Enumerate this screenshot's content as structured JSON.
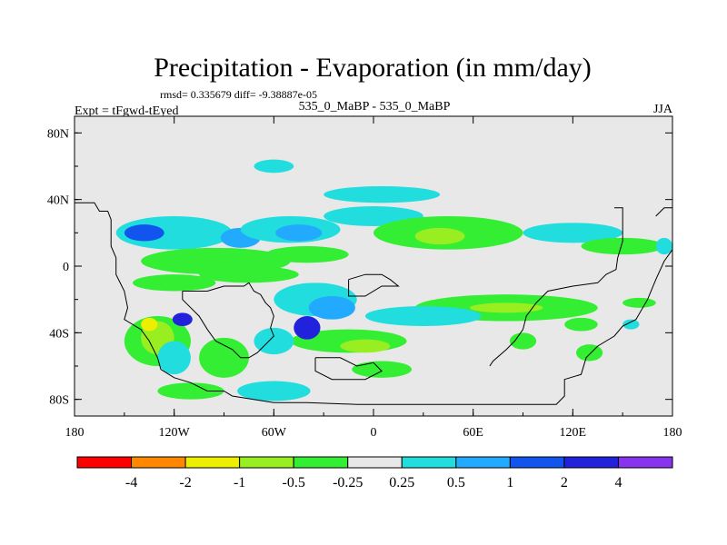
{
  "chart_data": {
    "type": "heatmap",
    "title": "Precipitation - Evaporation (in mm/day)",
    "stats": "rmsd= 0.335679 diff= -9.38887e-05",
    "left_label": "Expt = tFgwd-tEyed",
    "center_label": "535_0_MaBP - 535_0_MaBP",
    "right_label": "JJA",
    "xlim": [
      -180,
      180
    ],
    "ylim": [
      -90,
      90
    ],
    "x_ticks": [
      {
        "value": -180,
        "label": "180"
      },
      {
        "value": -120,
        "label": "120W"
      },
      {
        "value": -60,
        "label": "60W"
      },
      {
        "value": 0,
        "label": "0"
      },
      {
        "value": 60,
        "label": "60E"
      },
      {
        "value": 120,
        "label": "120E"
      },
      {
        "value": 180,
        "label": "180"
      }
    ],
    "y_ticks": [
      {
        "value": 80,
        "label": "80N"
      },
      {
        "value": 40,
        "label": "40N"
      },
      {
        "value": 0,
        "label": "0"
      },
      {
        "value": -40,
        "label": "40S"
      },
      {
        "value": -80,
        "label": "80S"
      }
    ],
    "colorbar": {
      "labels": [
        "-4",
        "-2",
        "-1",
        "-0.5",
        "-0.25",
        "0.25",
        "0.5",
        "1",
        "2",
        "4"
      ],
      "colors": [
        "#ff0000",
        "#ff8800",
        "#eeee00",
        "#99ee22",
        "#33ee33",
        "#e8e8e8",
        "#22dddd",
        "#22aaff",
        "#1155ee",
        "#2222dd",
        "#8833ee"
      ]
    },
    "background_color": "#e8e8e8",
    "coastline": [
      [
        [
          -180,
          38
        ],
        [
          -168,
          38
        ],
        [
          -165,
          33
        ],
        [
          -160,
          33
        ],
        [
          -158,
          28
        ],
        [
          -158,
          12
        ],
        [
          -155,
          5
        ],
        [
          -155,
          -5
        ],
        [
          -150,
          -15
        ],
        [
          -148,
          -25
        ],
        [
          -150,
          -32
        ],
        [
          -140,
          -38
        ],
        [
          -135,
          -45
        ],
        [
          -130,
          -55
        ],
        [
          -128,
          -62
        ],
        [
          -120,
          -67
        ],
        [
          -110,
          -70
        ],
        [
          -100,
          -75
        ],
        [
          -90,
          -75
        ],
        [
          -85,
          -78
        ],
        [
          -60,
          -82
        ],
        [
          -40,
          -82
        ],
        [
          -10,
          -83
        ],
        [
          20,
          -83
        ],
        [
          60,
          -83
        ],
        [
          110,
          -83
        ],
        [
          115,
          -78
        ],
        [
          115,
          -68
        ],
        [
          125,
          -65
        ],
        [
          128,
          -55
        ],
        [
          135,
          -48
        ],
        [
          145,
          -42
        ],
        [
          150,
          -36
        ],
        [
          158,
          -32
        ],
        [
          165,
          -20
        ],
        [
          170,
          -8
        ],
        [
          175,
          3
        ],
        [
          180,
          10
        ]
      ],
      [
        [
          -115,
          -15
        ],
        [
          -100,
          -15
        ],
        [
          -90,
          -12
        ],
        [
          -78,
          -12
        ],
        [
          -75,
          -10
        ],
        [
          -72,
          -15
        ],
        [
          -68,
          -17
        ],
        [
          -65,
          -22
        ],
        [
          -62,
          -25
        ],
        [
          -60,
          -30
        ],
        [
          -62,
          -37
        ],
        [
          -60,
          -42
        ],
        [
          -65,
          -47
        ],
        [
          -70,
          -52
        ],
        [
          -75,
          -55
        ],
        [
          -80,
          -55
        ],
        [
          -85,
          -50
        ],
        [
          -95,
          -45
        ],
        [
          -100,
          -38
        ],
        [
          -105,
          -30
        ],
        [
          -110,
          -25
        ],
        [
          -115,
          -20
        ],
        [
          -115,
          -15
        ]
      ],
      [
        [
          -15,
          -8
        ],
        [
          -5,
          -5
        ],
        [
          5,
          -5
        ],
        [
          10,
          -8
        ],
        [
          15,
          -12
        ],
        [
          5,
          -12
        ],
        [
          -5,
          -18
        ],
        [
          -15,
          -18
        ],
        [
          -15,
          -8
        ]
      ],
      [
        [
          -35,
          -55
        ],
        [
          -20,
          -55
        ],
        [
          -10,
          -60
        ],
        [
          0,
          -58
        ],
        [
          5,
          -63
        ],
        [
          -5,
          -68
        ],
        [
          -25,
          -68
        ],
        [
          -35,
          -63
        ],
        [
          -35,
          -55
        ]
      ],
      [
        [
          145,
          35
        ],
        [
          150,
          35
        ],
        [
          150,
          15
        ],
        [
          147,
          5
        ],
        [
          146,
          -2
        ],
        [
          140,
          -5
        ],
        [
          135,
          -10
        ],
        [
          120,
          -12
        ],
        [
          105,
          -15
        ],
        [
          98,
          -22
        ],
        [
          92,
          -30
        ],
        [
          90,
          -38
        ],
        [
          85,
          -45
        ],
        [
          80,
          -50
        ],
        [
          72,
          -57
        ],
        [
          70,
          -60
        ]
      ],
      [
        [
          170,
          30
        ],
        [
          175,
          35
        ],
        [
          180,
          35
        ]
      ]
    ],
    "regions": [
      {
        "bin": 6,
        "cx": -120,
        "cy": 20,
        "rx": 35,
        "ry": 10
      },
      {
        "bin": 8,
        "cx": -138,
        "cy": 20,
        "rx": 12,
        "ry": 5
      },
      {
        "bin": 7,
        "cx": -80,
        "cy": 17,
        "rx": 12,
        "ry": 6
      },
      {
        "bin": 6,
        "cx": -50,
        "cy": 22,
        "rx": 30,
        "ry": 8
      },
      {
        "bin": 7,
        "cx": -45,
        "cy": 20,
        "rx": 14,
        "ry": 5
      },
      {
        "bin": 4,
        "cx": -95,
        "cy": 3,
        "rx": 45,
        "ry": 8
      },
      {
        "bin": 4,
        "cx": -40,
        "cy": 7,
        "rx": 25,
        "ry": 5
      },
      {
        "bin": 6,
        "cx": 0,
        "cy": 30,
        "rx": 30,
        "ry": 6
      },
      {
        "bin": 4,
        "cx": 45,
        "cy": 20,
        "rx": 45,
        "ry": 10
      },
      {
        "bin": 3,
        "cx": 40,
        "cy": 18,
        "rx": 15,
        "ry": 5
      },
      {
        "bin": 6,
        "cx": 120,
        "cy": 20,
        "rx": 30,
        "ry": 6
      },
      {
        "bin": 4,
        "cx": 150,
        "cy": 12,
        "rx": 25,
        "ry": 5
      },
      {
        "bin": 6,
        "cx": -60,
        "cy": 60,
        "rx": 12,
        "ry": 4
      },
      {
        "bin": 6,
        "cx": 5,
        "cy": 43,
        "rx": 35,
        "ry": 5
      },
      {
        "bin": 4,
        "cx": -75,
        "cy": -5,
        "rx": 30,
        "ry": 5
      },
      {
        "bin": 4,
        "cx": -120,
        "cy": -10,
        "rx": 25,
        "ry": 5
      },
      {
        "bin": 6,
        "cx": -35,
        "cy": -20,
        "rx": 25,
        "ry": 10
      },
      {
        "bin": 7,
        "cx": -25,
        "cy": -25,
        "rx": 14,
        "ry": 7
      },
      {
        "bin": 4,
        "cx": 80,
        "cy": -25,
        "rx": 55,
        "ry": 8
      },
      {
        "bin": 3,
        "cx": 80,
        "cy": -25,
        "rx": 22,
        "ry": 3
      },
      {
        "bin": 6,
        "cx": 30,
        "cy": -30,
        "rx": 35,
        "ry": 6
      },
      {
        "bin": 4,
        "cx": -15,
        "cy": -45,
        "rx": 35,
        "ry": 7
      },
      {
        "bin": 3,
        "cx": -5,
        "cy": -48,
        "rx": 15,
        "ry": 4
      },
      {
        "bin": 9,
        "cx": -40,
        "cy": -37,
        "rx": 8,
        "ry": 7
      },
      {
        "bin": 6,
        "cx": -60,
        "cy": -45,
        "rx": 12,
        "ry": 8
      },
      {
        "bin": 4,
        "cx": -130,
        "cy": -45,
        "rx": 20,
        "ry": 15
      },
      {
        "bin": 3,
        "cx": -130,
        "cy": -43,
        "rx": 10,
        "ry": 10
      },
      {
        "bin": 2,
        "cx": -135,
        "cy": -35,
        "rx": 5,
        "ry": 4
      },
      {
        "bin": 9,
        "cx": -115,
        "cy": -32,
        "rx": 6,
        "ry": 4
      },
      {
        "bin": 6,
        "cx": -120,
        "cy": -55,
        "rx": 10,
        "ry": 10
      },
      {
        "bin": 4,
        "cx": -90,
        "cy": -55,
        "rx": 15,
        "ry": 12
      },
      {
        "bin": 4,
        "cx": -110,
        "cy": -75,
        "rx": 20,
        "ry": 5
      },
      {
        "bin": 6,
        "cx": -60,
        "cy": -75,
        "rx": 22,
        "ry": 6
      },
      {
        "bin": 4,
        "cx": 5,
        "cy": -62,
        "rx": 18,
        "ry": 5
      },
      {
        "bin": 4,
        "cx": 125,
        "cy": -35,
        "rx": 10,
        "ry": 4
      },
      {
        "bin": 4,
        "cx": 90,
        "cy": -45,
        "rx": 8,
        "ry": 5
      },
      {
        "bin": 4,
        "cx": 130,
        "cy": -52,
        "rx": 8,
        "ry": 5
      },
      {
        "bin": 6,
        "cx": 155,
        "cy": -35,
        "rx": 5,
        "ry": 3
      },
      {
        "bin": 6,
        "cx": 175,
        "cy": 12,
        "rx": 5,
        "ry": 5
      },
      {
        "bin": 4,
        "cx": 160,
        "cy": -22,
        "rx": 10,
        "ry": 3
      }
    ]
  }
}
